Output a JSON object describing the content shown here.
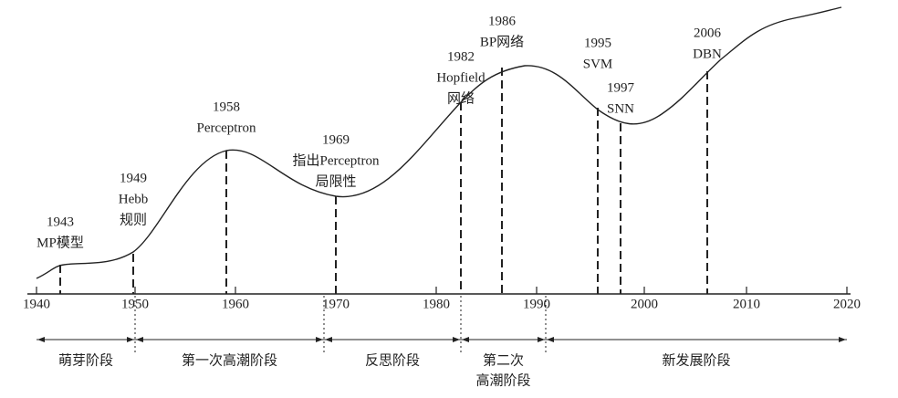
{
  "axis": {
    "ticks": [
      1940,
      1950,
      1960,
      1970,
      1980,
      1990,
      2000,
      2010,
      2020
    ]
  },
  "events": [
    {
      "year": 1943,
      "label": [
        "MP模型"
      ]
    },
    {
      "year": 1949,
      "label": [
        "Hebb",
        "规则"
      ]
    },
    {
      "year": 1958,
      "label": [
        "Perceptron"
      ]
    },
    {
      "year": 1969,
      "label": [
        "指出Perceptron",
        "局限性"
      ]
    },
    {
      "year": 1982,
      "label": [
        "Hopfield",
        "网络"
      ]
    },
    {
      "year": 1986,
      "label": [
        "BP网络"
      ]
    },
    {
      "year": 1995,
      "label": [
        "SVM"
      ]
    },
    {
      "year": 1997,
      "label": [
        "SNN"
      ]
    },
    {
      "year": 2006,
      "label": [
        "DBN"
      ]
    }
  ],
  "phases": [
    {
      "label": [
        "萌芽阶段"
      ]
    },
    {
      "label": [
        "第一次高潮阶段"
      ]
    },
    {
      "label": [
        "反思阶段"
      ]
    },
    {
      "label": [
        "第二次",
        "高潮阶段"
      ]
    },
    {
      "label": [
        "新发展阶段"
      ]
    }
  ]
}
